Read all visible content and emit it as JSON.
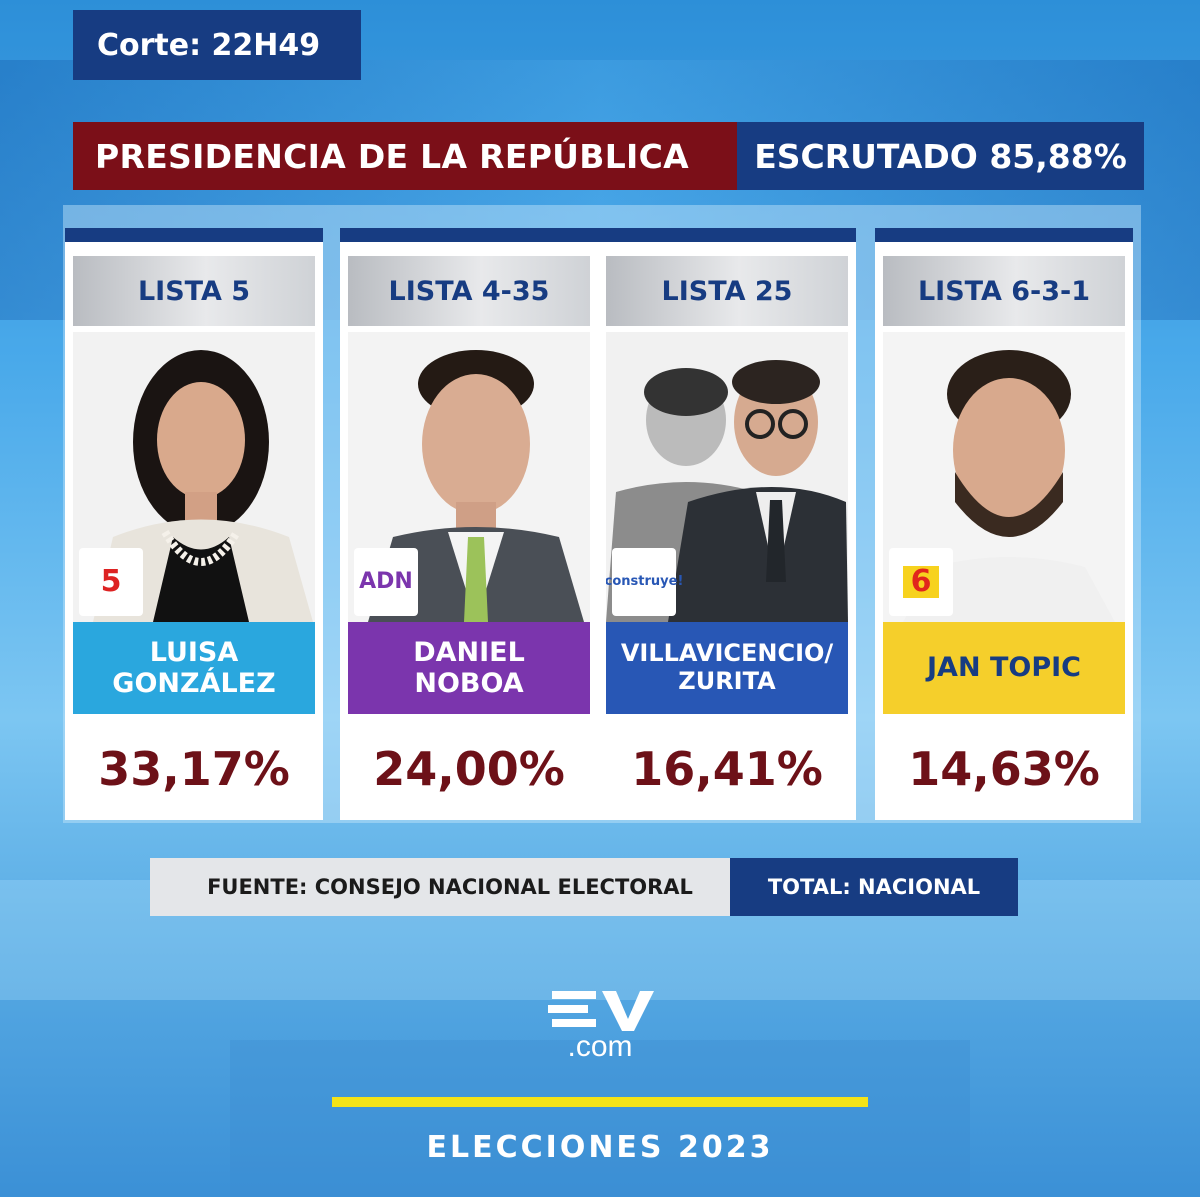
{
  "header": {
    "corte": "Corte: 22H49",
    "title": "PRESIDENCIA DE LA REPÚBLICA",
    "escrutado": "ESCRUTADO 85,88%"
  },
  "candidates": [
    {
      "lista": "LISTA 5",
      "name_line1": "LUISA",
      "name_line2": "GONZÁLEZ",
      "percentage": "33,17%",
      "name_bg": "#2aa7de",
      "logo_text": "5",
      "logo_icon": "revolucion-ciudadana-logo"
    },
    {
      "lista": "LISTA 4-35",
      "name_line1": "DANIEL",
      "name_line2": "NOBOA",
      "percentage": "24,00%",
      "name_bg": "#7b35ad",
      "logo_text": "ADN",
      "logo_icon": "adn-logo"
    },
    {
      "lista": "LISTA 25",
      "name_line1": "VILLAVICENCIO/",
      "name_line2": "ZURITA",
      "percentage": "16,41%",
      "name_bg": "#2857b5",
      "logo_text": "construye!",
      "logo_icon": "construye-logo"
    },
    {
      "lista": "LISTA 6-3-1",
      "name_line1": "JAN TOPIC",
      "name_line2": "",
      "percentage": "14,63%",
      "name_bg": "#f5cf2b",
      "logo_text": "6",
      "logo_icon": "psc-logo"
    }
  ],
  "footer": {
    "fuente": "FUENTE: CONSEJO NACIONAL ELECTORAL",
    "total": "TOTAL: NACIONAL",
    "brand": ".com",
    "event": "ELECCIONES 2023"
  }
}
